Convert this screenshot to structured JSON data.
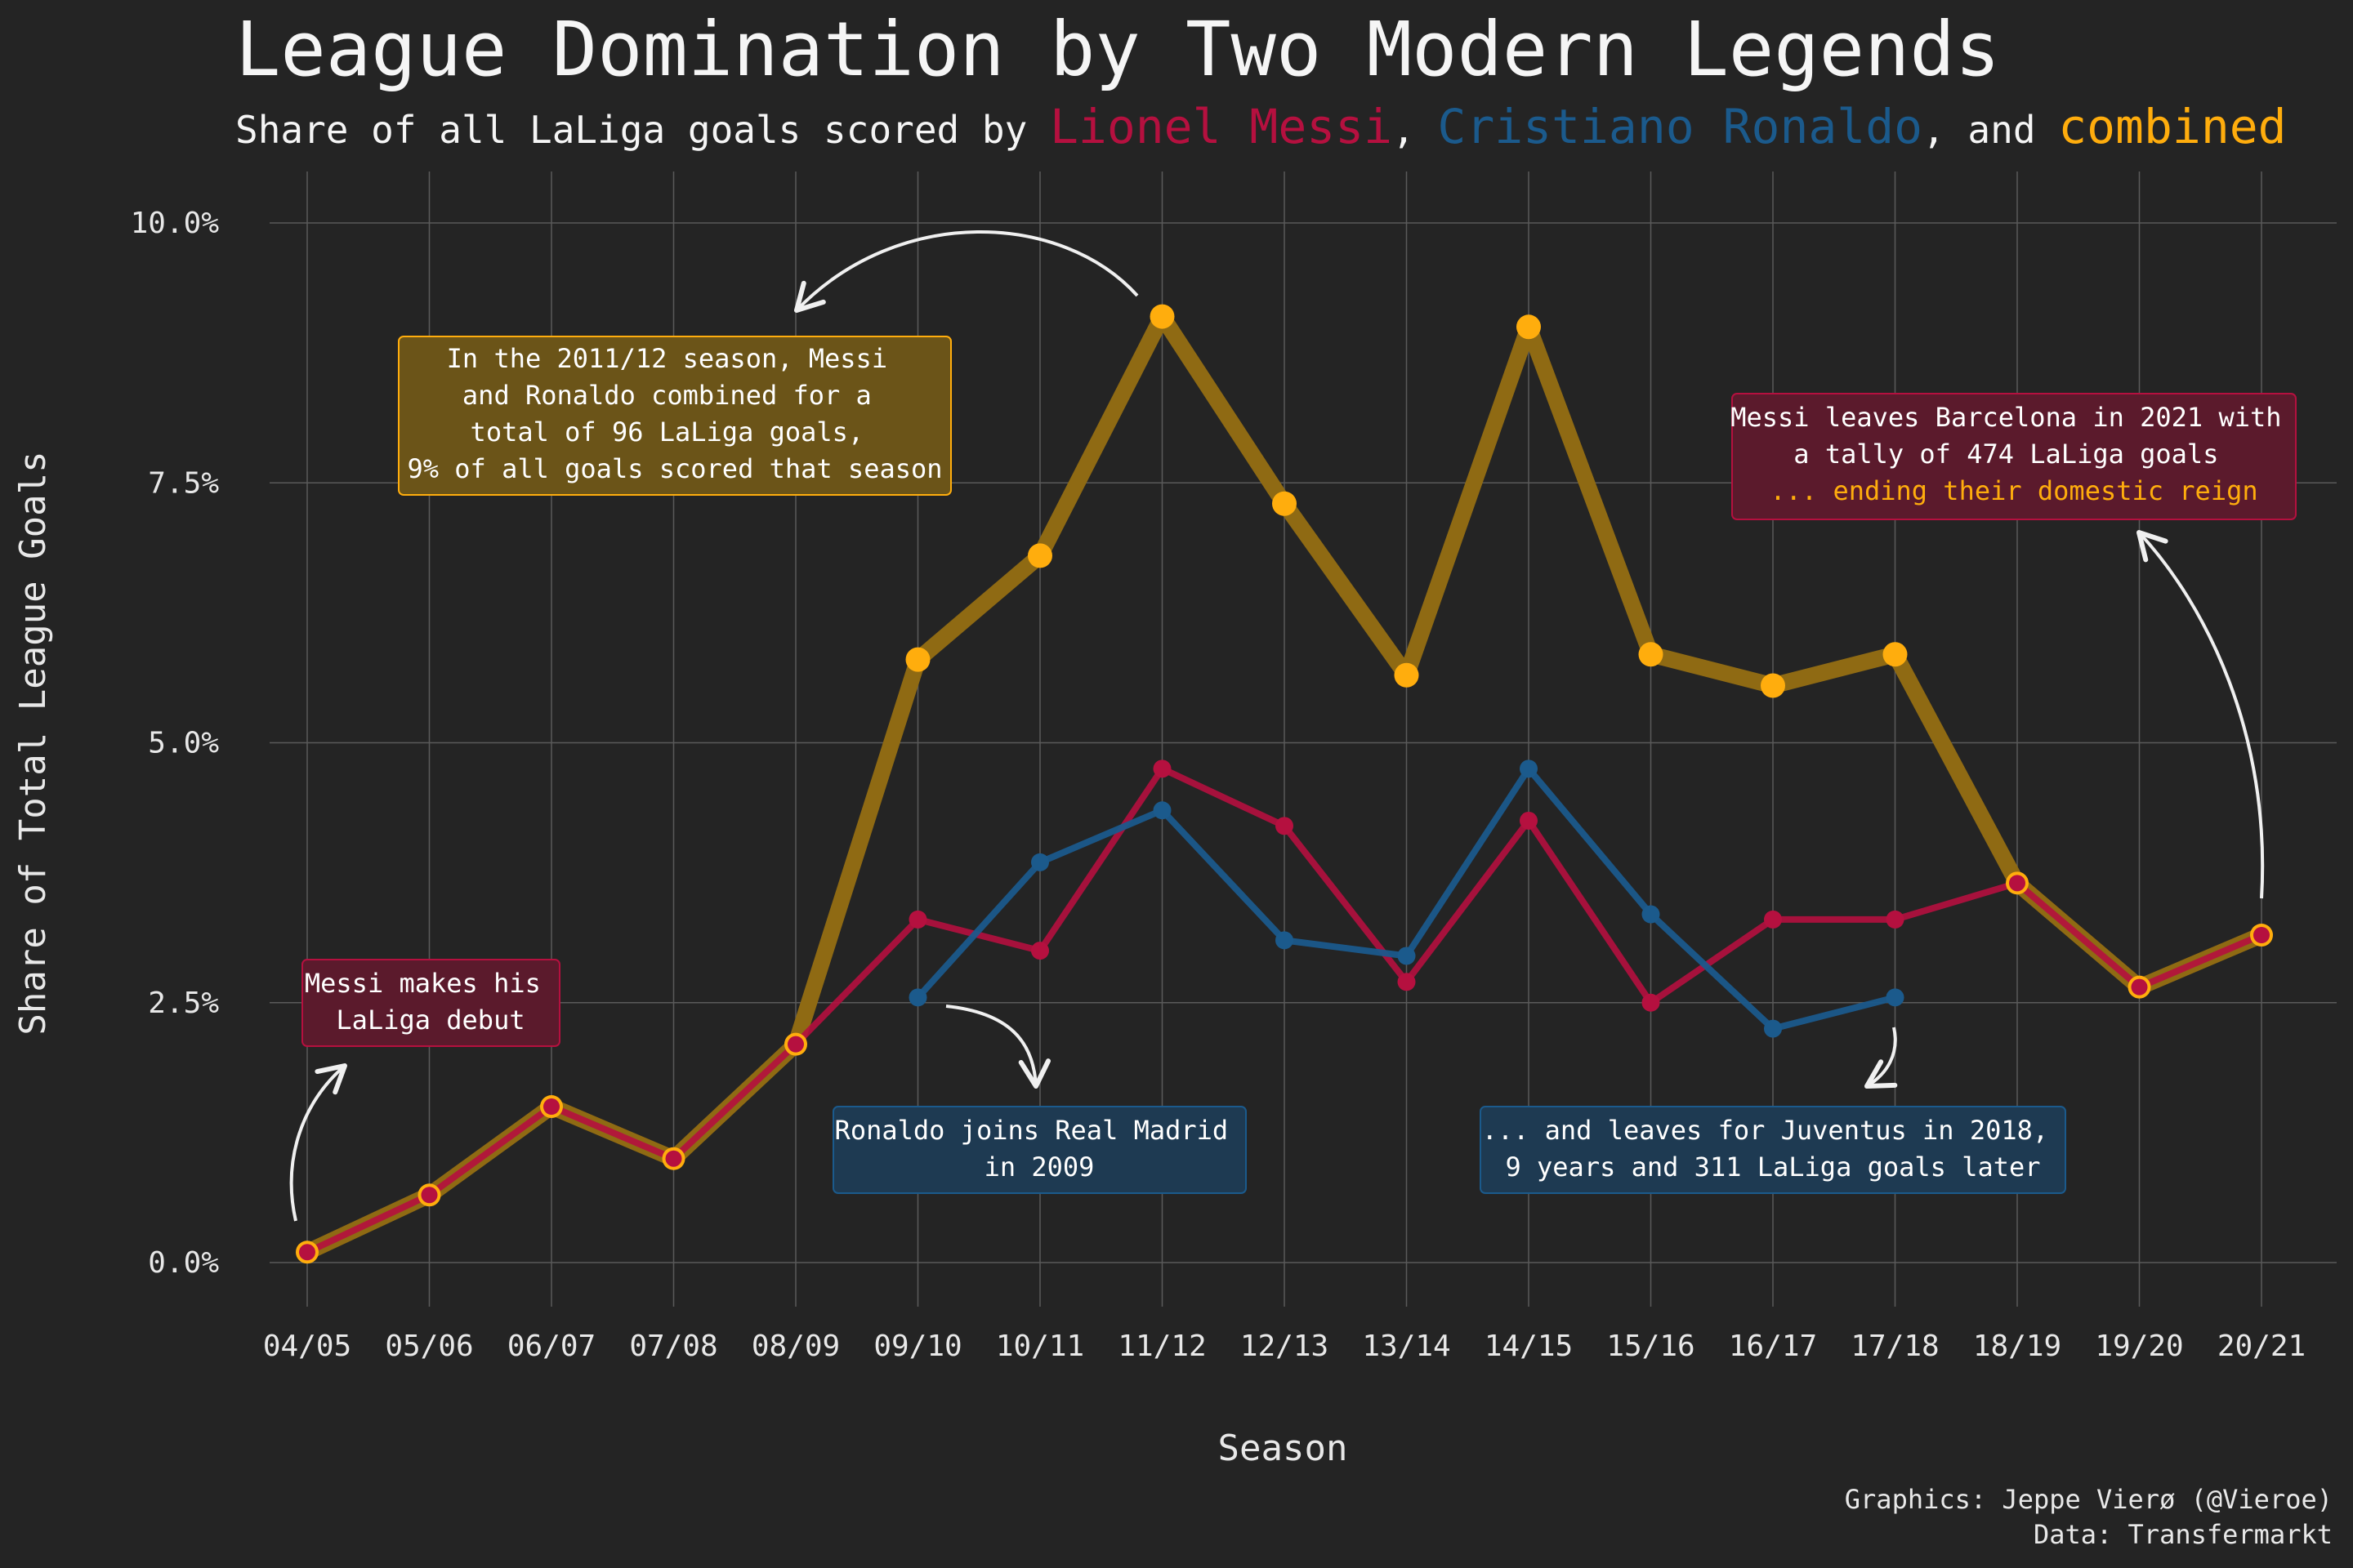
{
  "title": "League Domination by Two Modern Legends",
  "subtitle": {
    "prefix": "Share of all LaLiga goals scored by ",
    "messi": "Lionel Messi",
    "sep1": ", ",
    "ronaldo": "Cristiano Ronaldo",
    "sep2": ", and ",
    "combined": "combined"
  },
  "colors": {
    "background": "#242424",
    "messi": "#b5103f",
    "ronaldo": "#1b5a8c",
    "combined": "#ffad0d",
    "combined_line": "#8f6a13",
    "grid": "#5a5a5a"
  },
  "annotations": {
    "combined_peak": [
      "In the 2011/12 season, Messi",
      "and Ronaldo combined for a",
      "total of 96 LaLiga goals,",
      "9% of all goals scored that season"
    ],
    "messi_debut": [
      "Messi makes his",
      "LaLiga debut"
    ],
    "ronaldo_joins": [
      "Ronaldo joins Real Madrid",
      "in 2009"
    ],
    "ronaldo_leaves": [
      "... and leaves for Juventus in 2018,",
      "9 years and 311 LaLiga goals later"
    ],
    "messi_leaves": [
      "Messi leaves Barcelona in 2021 with",
      "a tally of 474 LaLiga goals",
      "... ending their domestic reign"
    ]
  },
  "credits": {
    "graphics": "Graphics: Jeppe Vierø (@Vieroe)",
    "data": "Data: Transfermarkt"
  },
  "chart_data": {
    "type": "line",
    "title": "League Domination by Two Modern Legends",
    "xlabel": "Season",
    "ylabel": "Share of Total League Goals",
    "ylim": [
      -0.5,
      10.5
    ],
    "yticks": [
      0.0,
      2.5,
      5.0,
      7.5,
      10.0
    ],
    "ytick_labels": [
      "0.0%",
      "2.5%",
      "5.0%",
      "7.5%",
      "10.0%"
    ],
    "categories": [
      "04/05",
      "05/06",
      "06/07",
      "07/08",
      "08/09",
      "09/10",
      "10/11",
      "11/12",
      "12/13",
      "13/14",
      "14/15",
      "15/16",
      "16/17",
      "17/18",
      "18/19",
      "19/20",
      "20/21"
    ],
    "grid": true,
    "series": [
      {
        "name": "Lionel Messi",
        "values": [
          0.1,
          0.65,
          1.5,
          1.0,
          2.1,
          3.3,
          3.0,
          4.75,
          4.2,
          2.7,
          4.25,
          2.5,
          3.3,
          3.3,
          3.65,
          2.65,
          3.15
        ]
      },
      {
        "name": "Cristiano Ronaldo",
        "values": [
          null,
          null,
          null,
          null,
          null,
          2.55,
          3.85,
          4.35,
          3.1,
          2.95,
          4.75,
          3.35,
          2.25,
          2.55,
          null,
          null,
          null
        ]
      },
      {
        "name": "combined",
        "values": [
          0.1,
          0.65,
          1.5,
          1.0,
          2.1,
          5.8,
          6.8,
          9.1,
          7.3,
          5.65,
          9.0,
          5.85,
          5.55,
          5.85,
          3.65,
          2.65,
          3.15
        ]
      }
    ]
  }
}
